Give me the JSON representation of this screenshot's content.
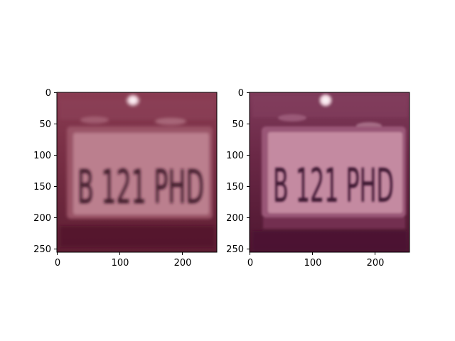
{
  "panels": [
    {
      "plate_text": "B 121 PHD",
      "xticks": [
        "0",
        "100",
        "200"
      ],
      "yticks": [
        "0",
        "50",
        "100",
        "150",
        "200",
        "250"
      ]
    },
    {
      "plate_text": "B 121 PHD",
      "xticks": [
        "0",
        "100",
        "200"
      ],
      "yticks": [
        "0",
        "50",
        "100",
        "150",
        "200",
        "250"
      ]
    }
  ],
  "colors": {
    "left_bg": "#7a2f45",
    "left_plate": "#b8788a",
    "left_text": "#3a1426",
    "right_bg": "#6e2a48",
    "right_plate": "#c58aa0",
    "right_text": "#3d1630"
  }
}
